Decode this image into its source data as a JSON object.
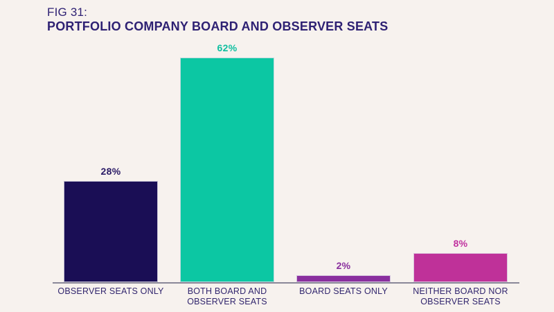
{
  "figure": {
    "label": "FIG 31:",
    "title": "PORTFOLIO COMPANY BOARD AND OBSERVER SEATS"
  },
  "colors": {
    "background": "#f7f2ee",
    "title_text": "#2e2173",
    "category_text": "#32266e",
    "axis_line": "#8a8798"
  },
  "chart_data": {
    "type": "bar",
    "title": "FIG 31: PORTFOLIO COMPANY BOARD AND OBSERVER SEATS",
    "categories": [
      "OBSERVER SEATS ONLY",
      "BOTH BOARD AND OBSERVER SEATS",
      "BOARD SEATS ONLY",
      "NEITHER BOARD NOR OBSERVER SEATS"
    ],
    "values": [
      28,
      62,
      2,
      8
    ],
    "value_labels": [
      "28%",
      "62%",
      "2%",
      "8%"
    ],
    "bar_colors": [
      "#1a0e55",
      "#0cc7a3",
      "#8a2f9e",
      "#bf3199"
    ],
    "value_label_colors": [
      "#2a1b66",
      "#0fbfa0",
      "#8a2f9e",
      "#c0329f"
    ],
    "xlabel": "",
    "ylabel": "",
    "ylim": [
      0,
      70
    ],
    "grid": false,
    "legend": false
  }
}
